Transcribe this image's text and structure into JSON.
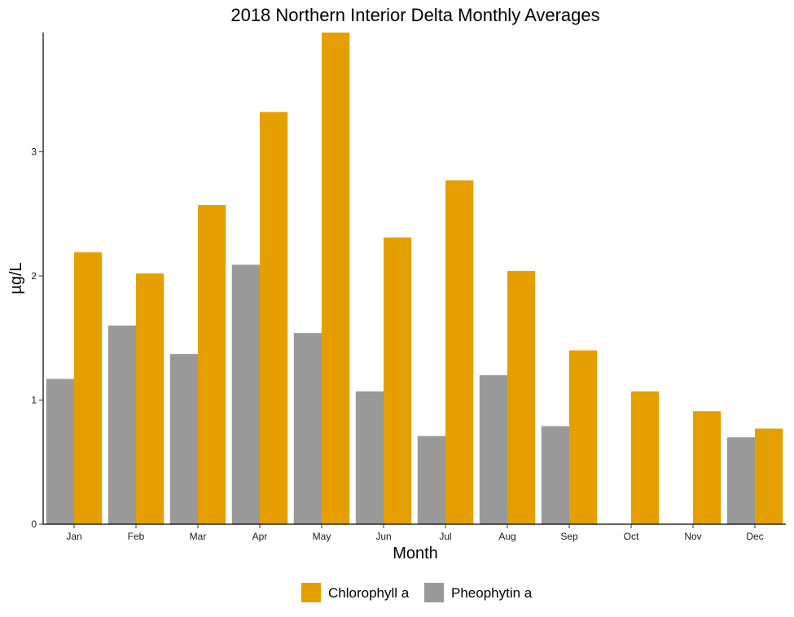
{
  "chart_data": {
    "type": "bar",
    "title": "2018 Northern Interior Delta Monthly Averages",
    "xlabel": "Month",
    "ylabel": "µg/L",
    "categories": [
      "Jan",
      "Feb",
      "Mar",
      "Apr",
      "May",
      "Jun",
      "Jul",
      "Aug",
      "Sep",
      "Oct",
      "Nov",
      "Dec"
    ],
    "series": [
      {
        "name": "Pheophytin a",
        "color": "#999999",
        "values": [
          1.17,
          1.6,
          1.37,
          2.09,
          1.54,
          1.07,
          0.71,
          1.2,
          0.79,
          null,
          null,
          0.7
        ]
      },
      {
        "name": "Chlorophyll a",
        "color": "#E69F00",
        "values": [
          2.19,
          2.02,
          2.57,
          3.32,
          3.96,
          2.31,
          2.77,
          2.04,
          1.4,
          1.07,
          0.91,
          0.77
        ]
      }
    ],
    "legend_order": [
      "Chlorophyll a",
      "Pheophytin a"
    ],
    "yticks": [
      0,
      1,
      2,
      3
    ],
    "ylim": [
      0,
      3.96
    ],
    "grid": false,
    "legend_position": "bottom"
  }
}
